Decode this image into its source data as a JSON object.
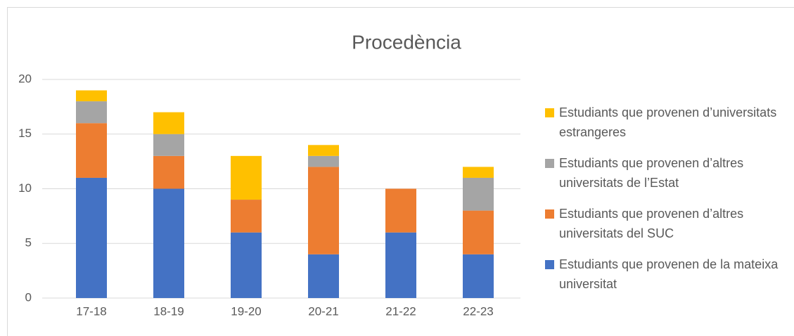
{
  "chart_data": {
    "type": "stacked_bar",
    "title": "Procedència",
    "categories": [
      "17-18",
      "18-19",
      "19-20",
      "20-21",
      "21-22",
      "22-23"
    ],
    "series": [
      {
        "name": "Estudiants que provenen de la mateixa universitat",
        "color": "#4472c4",
        "values": [
          11,
          10,
          6,
          4,
          6,
          4
        ]
      },
      {
        "name": "Estudiants que provenen d’altres universitats del SUC",
        "color": "#ed7d31",
        "values": [
          5,
          3,
          3,
          8,
          4,
          4
        ]
      },
      {
        "name": "Estudiants que provenen d’altres universitats de l’Estat",
        "color": "#a5a5a5",
        "values": [
          2,
          2,
          0,
          1,
          0,
          3
        ]
      },
      {
        "name": "Estudiants que provenen d’universitats estrangeres",
        "color": "#ffc000",
        "values": [
          1,
          2,
          4,
          1,
          0,
          1
        ]
      }
    ],
    "ylim": [
      0,
      20
    ],
    "yticks": [
      0,
      5,
      10,
      15,
      20
    ],
    "grid": true,
    "legend": "right"
  }
}
